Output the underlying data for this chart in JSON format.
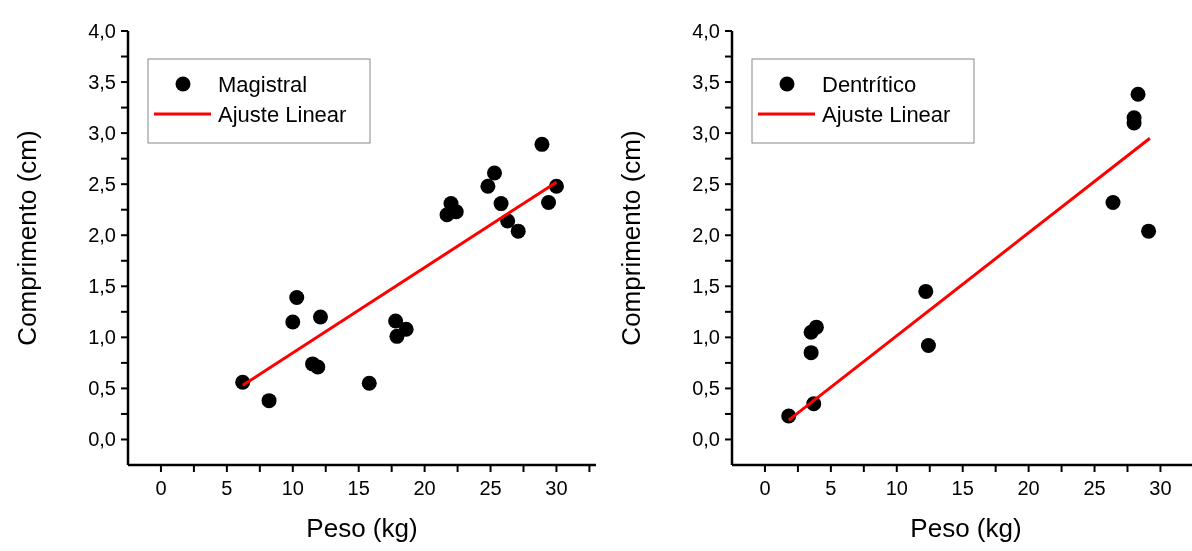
{
  "chart_data": [
    {
      "type": "scatter",
      "xlabel": "Peso (kg)",
      "ylabel": "Comprimento (cm)",
      "legend": "top left",
      "grid": false,
      "marker": "circle",
      "xlim": [
        -2.5,
        33
      ],
      "ylim": [
        -0.25,
        4.0
      ],
      "xticks": [
        0,
        {
          "value": 2.5,
          "label": null
        },
        5,
        {
          "value": 7.5,
          "label": null
        },
        10,
        {
          "value": 12.5,
          "label": null
        },
        15,
        {
          "value": 17.5,
          "label": null
        },
        20,
        {
          "value": 22.5,
          "label": null
        },
        25,
        {
          "value": 27.5,
          "label": null
        },
        30,
        {
          "value": 32.5,
          "label": null
        }
      ],
      "yticks": [
        {
          "value": 0,
          "label": "0,0"
        },
        {
          "value": 0.25,
          "label": null
        },
        {
          "value": 0.5,
          "label": "0,5"
        },
        {
          "value": 0.75,
          "label": null
        },
        {
          "value": 1,
          "label": "1,0"
        },
        {
          "value": 1.25,
          "label": null
        },
        {
          "value": 1.5,
          "label": "1,5"
        },
        {
          "value": 1.75,
          "label": null
        },
        {
          "value": 2,
          "label": "2,0"
        },
        {
          "value": 2.25,
          "label": null
        },
        {
          "value": 2.5,
          "label": "2,5"
        },
        {
          "value": 2.75,
          "label": null
        },
        {
          "value": 3,
          "label": "3,0"
        },
        {
          "value": 3.25,
          "label": null
        },
        {
          "value": 3.5,
          "label": "3,5"
        },
        {
          "value": 3.75,
          "label": null
        },
        {
          "value": 4,
          "label": "4,0"
        }
      ],
      "series": [
        {
          "name": "Magistral",
          "type": "scatter",
          "color": "#000000",
          "x": [
            6.2,
            8.2,
            10.0,
            10.3,
            12.1,
            11.5,
            11.9,
            15.8,
            17.8,
            17.9,
            18.6,
            21.7,
            22.0,
            22.4,
            24.8,
            25.3,
            25.8,
            26.3,
            27.1,
            28.9,
            29.4,
            30.0
          ],
          "values": [
            0.56,
            0.38,
            1.15,
            1.39,
            1.2,
            0.74,
            0.71,
            0.55,
            1.16,
            1.01,
            1.08,
            2.2,
            2.31,
            2.23,
            2.48,
            2.61,
            2.31,
            2.14,
            2.04,
            2.89,
            2.32,
            2.48
          ]
        },
        {
          "name": "Ajuste Linear",
          "type": "line",
          "color": "#ff0000",
          "line_style": "solid",
          "marker": "none",
          "x": [
            6.2,
            30.0
          ],
          "values": [
            0.53,
            2.52
          ]
        }
      ]
    },
    {
      "type": "scatter",
      "xlabel": "Peso (kg)",
      "ylabel": "Comprimento (cm)",
      "legend": "top left",
      "grid": false,
      "marker": "circle",
      "xlim": [
        -2.5,
        33
      ],
      "ylim": [
        -0.25,
        4.0
      ],
      "xticks": [
        0,
        {
          "value": 2.5,
          "label": null
        },
        5,
        {
          "value": 7.5,
          "label": null
        },
        10,
        {
          "value": 12.5,
          "label": null
        },
        15,
        {
          "value": 17.5,
          "label": null
        },
        20,
        {
          "value": 22.5,
          "label": null
        },
        25,
        {
          "value": 27.5,
          "label": null
        },
        30,
        {
          "value": 32.5,
          "label": null
        }
      ],
      "yticks": [
        {
          "value": 0,
          "label": "0,0"
        },
        {
          "value": 0.25,
          "label": null
        },
        {
          "value": 0.5,
          "label": "0,5"
        },
        {
          "value": 0.75,
          "label": null
        },
        {
          "value": 1,
          "label": "1,0"
        },
        {
          "value": 1.25,
          "label": null
        },
        {
          "value": 1.5,
          "label": "1,5"
        },
        {
          "value": 1.75,
          "label": null
        },
        {
          "value": 2,
          "label": "2,0"
        },
        {
          "value": 2.25,
          "label": null
        },
        {
          "value": 2.5,
          "label": "2,5"
        },
        {
          "value": 2.75,
          "label": null
        },
        {
          "value": 3,
          "label": "3,0"
        },
        {
          "value": 3.25,
          "label": null
        },
        {
          "value": 3.5,
          "label": "3,5"
        },
        {
          "value": 3.75,
          "label": null
        },
        {
          "value": 4,
          "label": "4,0"
        }
      ],
      "series": [
        {
          "name": "Dentrítico",
          "type": "scatter",
          "color": "#000000",
          "x": [
            1.8,
            3.7,
            3.5,
            3.5,
            3.9,
            12.2,
            12.4,
            26.4,
            28.0,
            28.0,
            28.3,
            29.1
          ],
          "values": [
            0.23,
            0.35,
            0.85,
            1.05,
            1.1,
            1.45,
            0.92,
            2.32,
            3.1,
            3.15,
            3.38,
            2.04
          ]
        },
        {
          "name": "Ajuste Linear",
          "type": "line",
          "color": "#ff0000",
          "line_style": "solid",
          "marker": "none",
          "x": [
            1.8,
            29.2
          ],
          "values": [
            0.19,
            2.95
          ]
        }
      ]
    }
  ]
}
